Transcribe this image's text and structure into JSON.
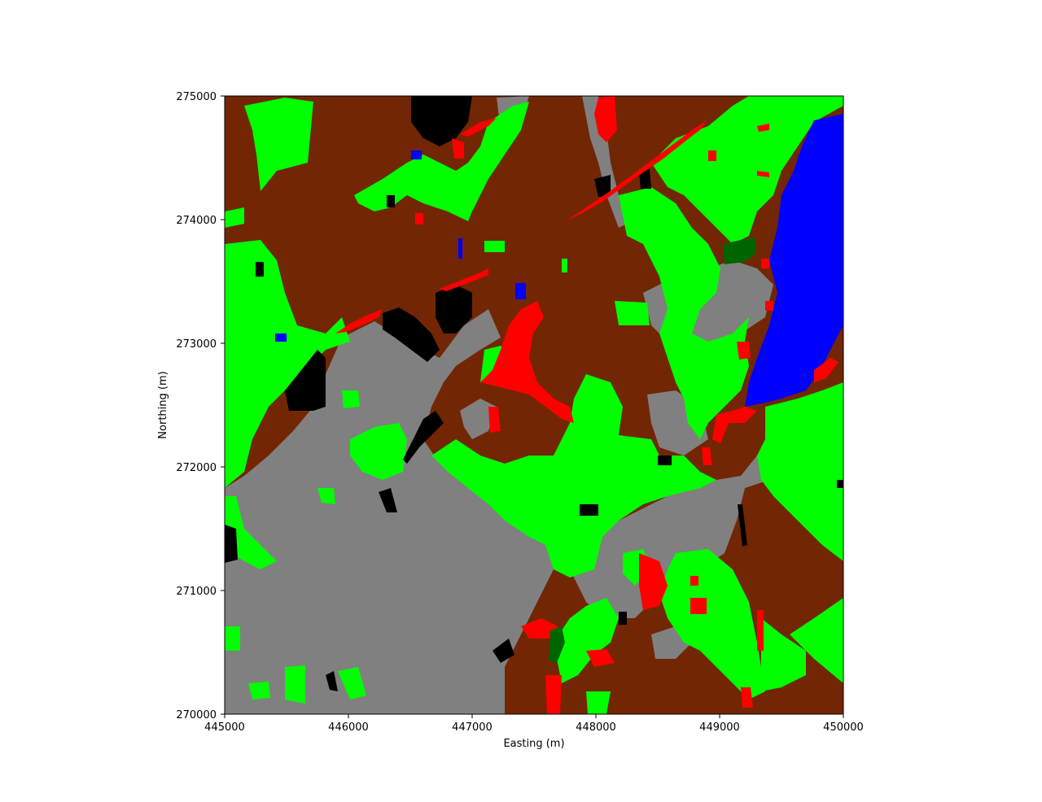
{
  "chart_data": {
    "type": "heatmap",
    "subtype": "land-cover raster map",
    "title": "",
    "xlabel": "Easting (m)",
    "ylabel": "Northing (m)",
    "xlim": [
      445000,
      450000
    ],
    "ylim": [
      270000,
      275000
    ],
    "x_ticks": [
      "445000",
      "446000",
      "447000",
      "448000",
      "449000",
      "450000"
    ],
    "y_ticks": [
      "270000",
      "271000",
      "272000",
      "273000",
      "274000",
      "275000"
    ],
    "grid": false,
    "legend": "none",
    "colors": {
      "brown": "#722604",
      "gray": "#808080",
      "bright_green": "#00ff00",
      "dark_green": "#006400",
      "red": "#ff0000",
      "black": "#000000",
      "blue": "#0000ff"
    }
  }
}
